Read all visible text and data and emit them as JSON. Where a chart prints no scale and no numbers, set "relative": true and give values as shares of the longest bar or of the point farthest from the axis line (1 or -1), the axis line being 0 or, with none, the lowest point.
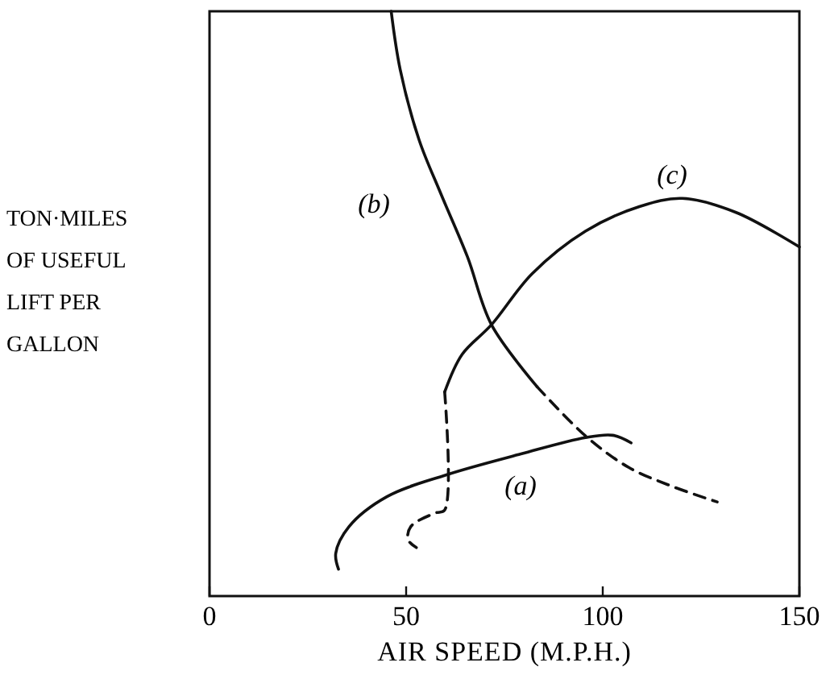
{
  "chart_data": {
    "type": "line",
    "relative": true,
    "xlabel": "AIR SPEED (M.P.H.)",
    "ylabel": "TON·MILES OF USEFUL LIFT PER GALLON",
    "xlim": [
      0,
      150
    ],
    "xticks": [
      0,
      50,
      100,
      150
    ],
    "grid": false,
    "series": [
      {
        "color": "#111111",
        "line_style": "solid",
        "x": [
          46.2,
          48.5,
          53.3,
          58.7,
          65.6,
          71.7,
          83.3
        ],
        "values": [
          1.0,
          0.9,
          0.78,
          0.69,
          0.58,
          0.464,
          0.358
        ]
      },
      {
        "color": "#111111",
        "line_style": "dashed",
        "x": [
          83.3,
          95.6,
          106.6,
          117.5,
          129.1
        ],
        "values": [
          0.358,
          0.274,
          0.22,
          0.188,
          0.161
        ]
      },
      {
        "color": "#111111",
        "line_style": "solid",
        "x": [
          59.8,
          64.2,
          71.7,
          82,
          95.6,
          109.3,
          120.2,
          133.9,
          150
        ],
        "values": [
          0.349,
          0.413,
          0.464,
          0.551,
          0.624,
          0.666,
          0.68,
          0.656,
          0.597
        ]
      },
      {
        "color": "#111111",
        "line_style": "dashed",
        "x": [
          59.8,
          59.8,
          57.4,
          51.2,
          50.5,
          52.6
        ],
        "values": [
          0.349,
          0.147,
          0.142,
          0.119,
          0.096,
          0.083
        ]
      },
      {
        "color": "#111111",
        "line_style": "solid",
        "x": [
          32.8,
          32.1,
          35.5,
          45.1,
          60.1,
          79.2,
          95.6,
          102.5,
          107.2
        ],
        "values": [
          0.046,
          0.073,
          0.119,
          0.17,
          0.207,
          0.243,
          0.271,
          0.275,
          0.262
        ]
      }
    ],
    "annotations": [
      "(a)",
      "(b)",
      "(c)"
    ]
  }
}
